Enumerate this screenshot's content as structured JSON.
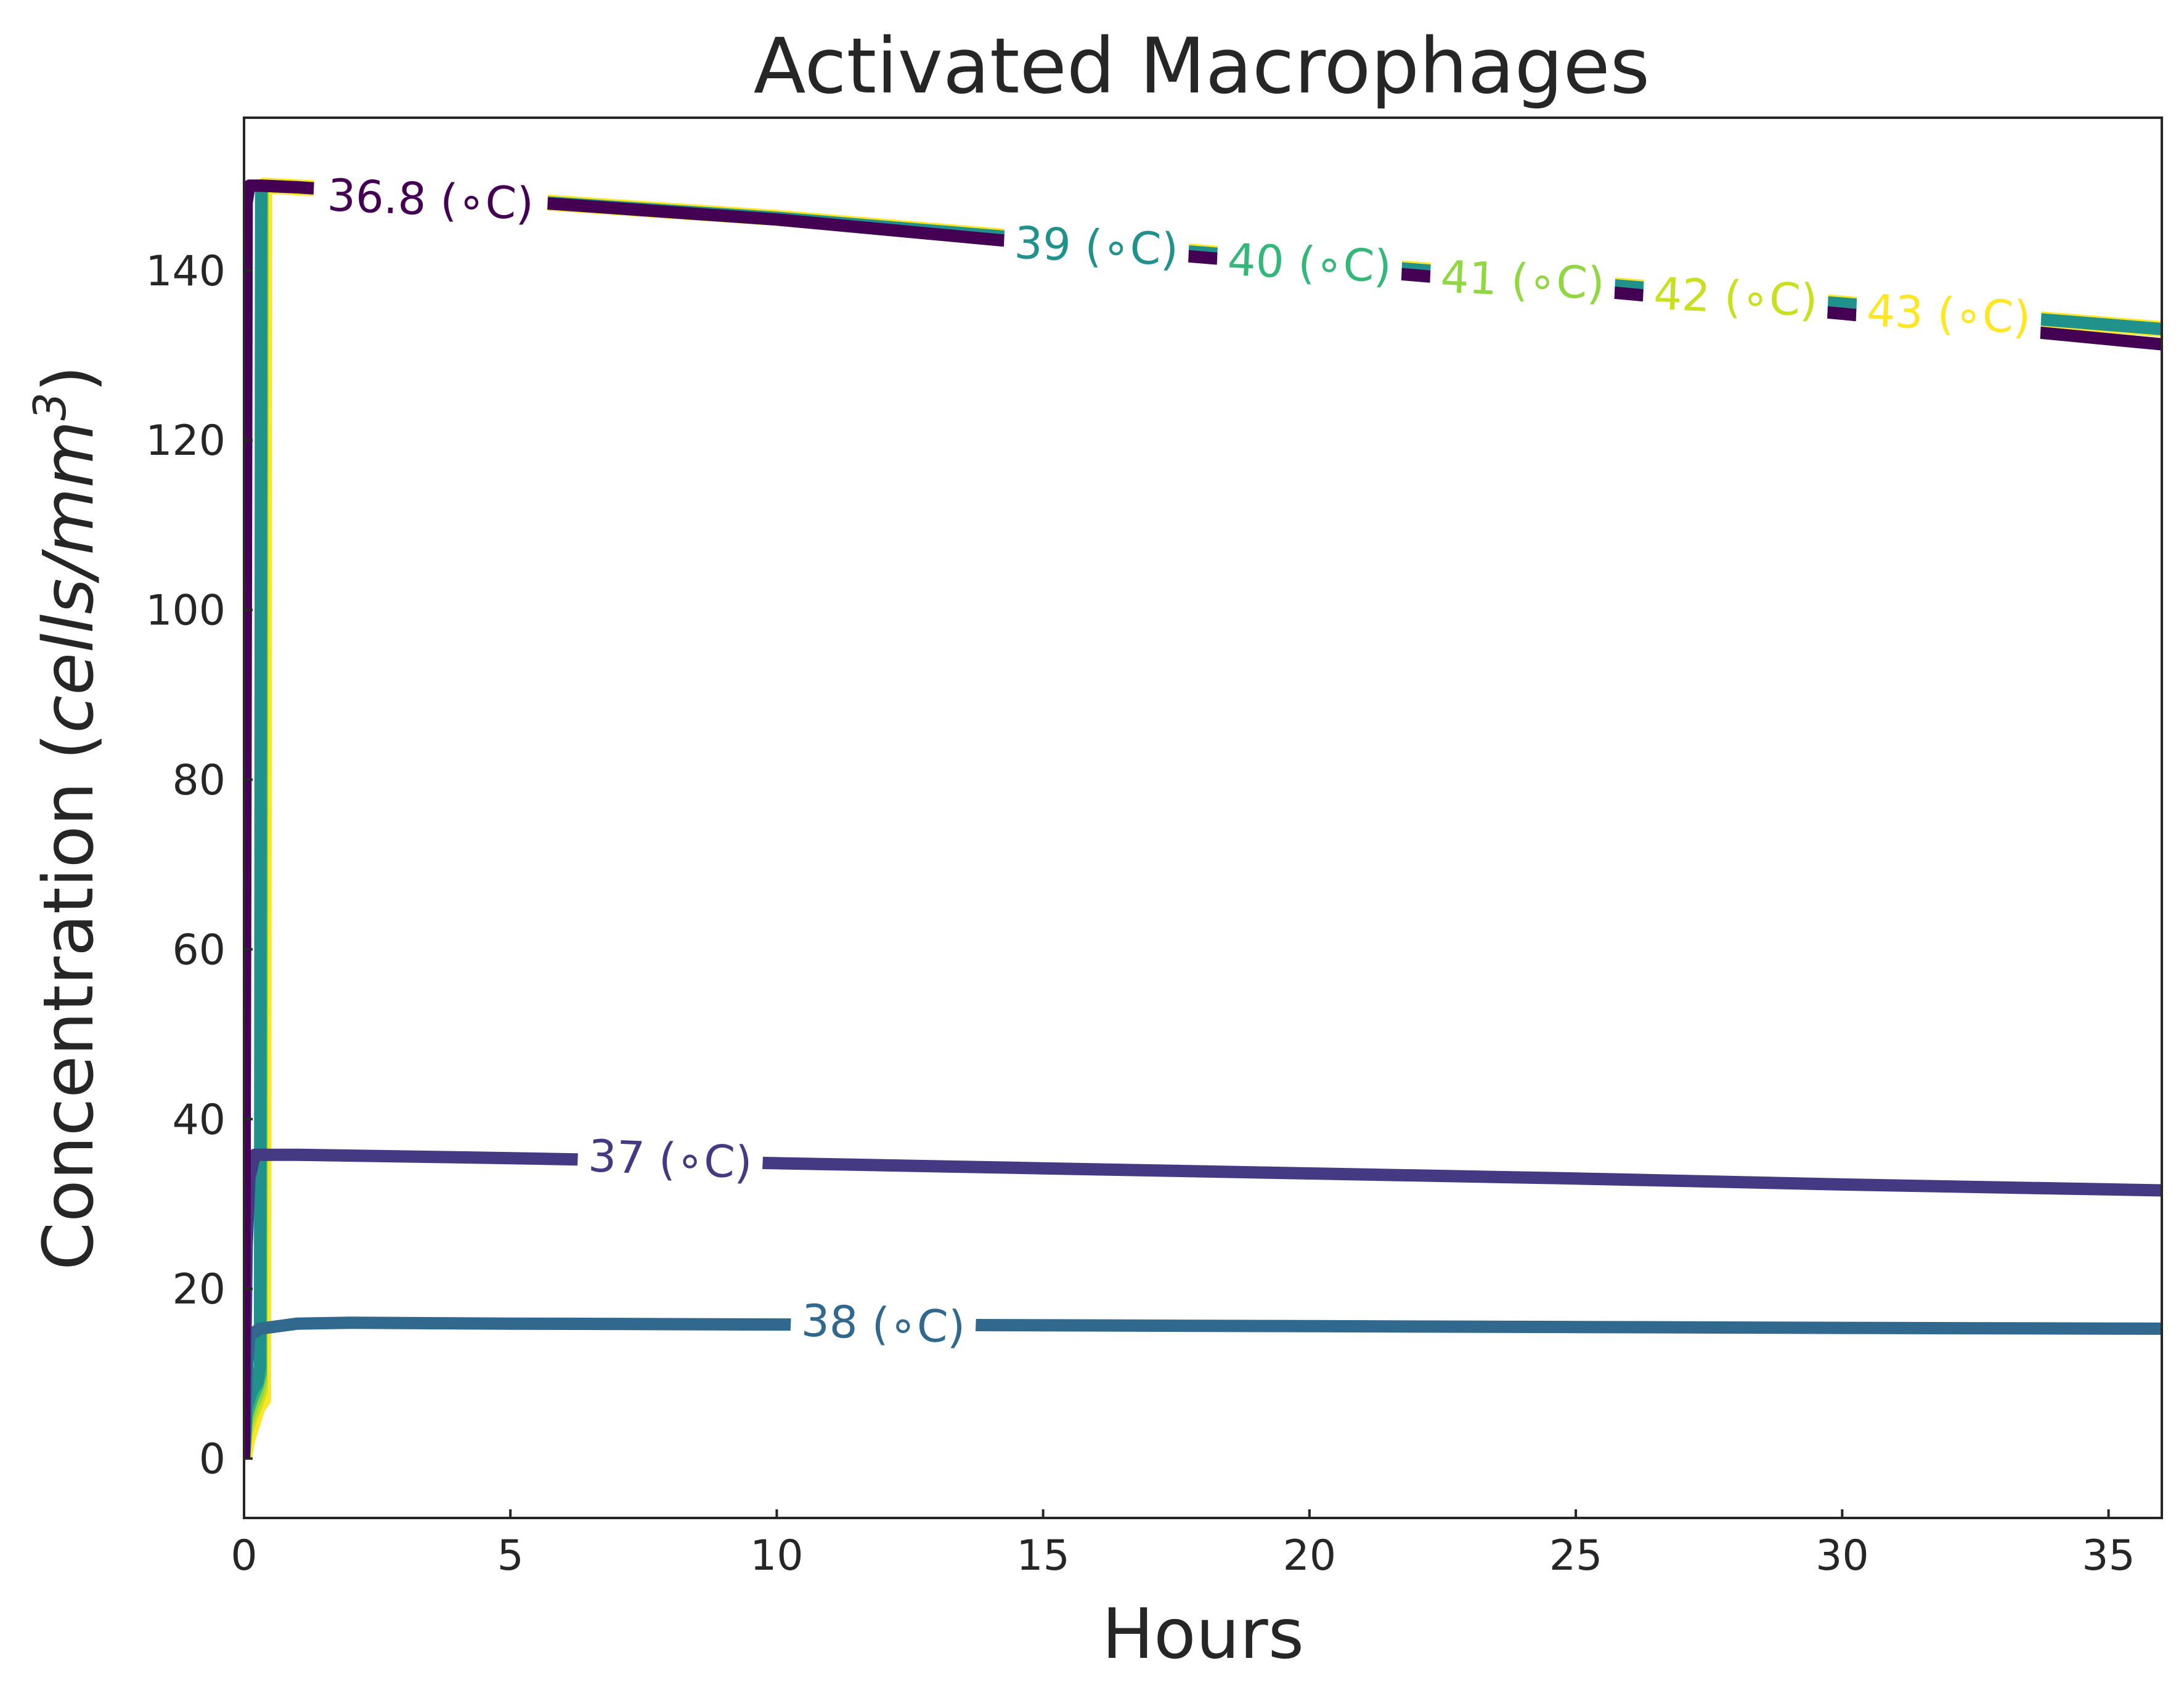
{
  "chart_data": {
    "type": "line",
    "title": "Activated Macrophages",
    "xlabel": "Hours",
    "ylabel_prefix": "Concentration (",
    "ylabel_italic": "cells/mm",
    "ylabel_sup": "3",
    "ylabel_suffix": ")",
    "xlim": [
      0,
      36
    ],
    "ylim": [
      -7,
      158
    ],
    "xticks": [
      0,
      5,
      10,
      15,
      20,
      25,
      30,
      35
    ],
    "yticks": [
      0,
      20,
      40,
      60,
      80,
      100,
      120,
      140
    ],
    "grid": false,
    "legend": "none (inline line labels)",
    "series": [
      {
        "name": "36.8 (∘C)",
        "color": "#440154",
        "points": [
          [
            0,
            0
          ],
          [
            0.05,
            148
          ],
          [
            0.1,
            150
          ],
          [
            0.3,
            150
          ],
          [
            1,
            149.8
          ],
          [
            5,
            148.2
          ],
          [
            10,
            146
          ],
          [
            15,
            143.1
          ],
          [
            20,
            140.5
          ],
          [
            25,
            137.8
          ],
          [
            30,
            134.9
          ],
          [
            36,
            131.3
          ]
        ],
        "label": {
          "text": "36.8 (∘C)",
          "x": 3.5,
          "y": 148.3
        }
      },
      {
        "name": "37 (∘C)",
        "color": "#443983",
        "points": [
          [
            0,
            0
          ],
          [
            0.05,
            25
          ],
          [
            0.1,
            33
          ],
          [
            0.2,
            35.8
          ],
          [
            1,
            35.8
          ],
          [
            5,
            35.4
          ],
          [
            10,
            34.8
          ],
          [
            15,
            34.2
          ],
          [
            20,
            33.6
          ],
          [
            25,
            33
          ],
          [
            30,
            32.3
          ],
          [
            36,
            31.6
          ]
        ],
        "label": {
          "text": "37 (∘C)",
          "x": 8,
          "y": 35.2
        }
      },
      {
        "name": "38 (∘C)",
        "color": "#31688e",
        "points": [
          [
            0,
            0
          ],
          [
            0.05,
            10
          ],
          [
            0.1,
            14.5
          ],
          [
            0.3,
            15.3
          ],
          [
            1,
            15.9
          ],
          [
            2,
            16.0
          ],
          [
            5,
            15.9
          ],
          [
            10,
            15.8
          ],
          [
            15,
            15.7
          ],
          [
            20,
            15.6
          ],
          [
            25,
            15.5
          ],
          [
            30,
            15.4
          ],
          [
            36,
            15.3
          ]
        ],
        "label": {
          "text": "38 (∘C)",
          "x": 12,
          "y": 15.8
        }
      },
      {
        "name": "39 (∘C)",
        "color": "#21918c",
        "points": [
          [
            0,
            0
          ],
          [
            0.05,
            6
          ],
          [
            0.15,
            8
          ],
          [
            0.25,
            9
          ],
          [
            0.3,
            11
          ],
          [
            0.32,
            150
          ],
          [
            1,
            149.8
          ],
          [
            5,
            148.3
          ],
          [
            10,
            146.2
          ],
          [
            15,
            143.6
          ],
          [
            20,
            141.1
          ],
          [
            25,
            138.6
          ],
          [
            30,
            136.1
          ],
          [
            36,
            133.1
          ]
        ],
        "label": {
          "text": "39 (∘C)",
          "x": 16,
          "y": 142.8
        }
      },
      {
        "name": "40 (∘C)",
        "color": "#35b779",
        "points": [
          [
            0,
            0
          ],
          [
            0.05,
            5
          ],
          [
            0.15,
            7
          ],
          [
            0.25,
            8.5
          ],
          [
            0.31,
            10
          ],
          [
            0.33,
            150
          ],
          [
            1,
            149.8
          ],
          [
            5,
            148.3
          ],
          [
            10,
            146.2
          ],
          [
            15,
            143.6
          ],
          [
            20,
            141.1
          ],
          [
            25,
            138.6
          ],
          [
            30,
            136.1
          ],
          [
            36,
            133.1
          ]
        ],
        "label": {
          "text": "40 (∘C)",
          "x": 20,
          "y": 140.8
        }
      },
      {
        "name": "41 (∘C)",
        "color": "#90d743",
        "points": [
          [
            0,
            0
          ],
          [
            0.05,
            4
          ],
          [
            0.15,
            6
          ],
          [
            0.25,
            7.5
          ],
          [
            0.32,
            9
          ],
          [
            0.34,
            150
          ],
          [
            1,
            149.8
          ],
          [
            5,
            148.3
          ],
          [
            10,
            146.2
          ],
          [
            15,
            143.6
          ],
          [
            20,
            141.1
          ],
          [
            25,
            138.6
          ],
          [
            30,
            136.1
          ],
          [
            36,
            133.1
          ]
        ],
        "label": {
          "text": "41 (∘C)",
          "x": 24,
          "y": 138.8
        }
      },
      {
        "name": "42 (∘C)",
        "color": "#c8e020",
        "points": [
          [
            0,
            0
          ],
          [
            0.05,
            3
          ],
          [
            0.15,
            5
          ],
          [
            0.25,
            6.5
          ],
          [
            0.33,
            8
          ],
          [
            0.35,
            150
          ],
          [
            1,
            149.8
          ],
          [
            5,
            148.3
          ],
          [
            10,
            146.2
          ],
          [
            15,
            143.6
          ],
          [
            20,
            141.1
          ],
          [
            25,
            138.6
          ],
          [
            30,
            136.1
          ],
          [
            36,
            133.1
          ]
        ],
        "label": {
          "text": "42 (∘C)",
          "x": 28,
          "y": 136.8
        }
      },
      {
        "name": "43 (∘C)",
        "color": "#fde725",
        "points": [
          [
            0,
            0
          ],
          [
            0.05,
            2
          ],
          [
            0.15,
            4
          ],
          [
            0.25,
            6
          ],
          [
            0.36,
            7
          ],
          [
            0.38,
            150
          ],
          [
            1,
            149.8
          ],
          [
            5,
            148.3
          ],
          [
            10,
            146.2
          ],
          [
            15,
            143.6
          ],
          [
            20,
            141.1
          ],
          [
            25,
            138.6
          ],
          [
            30,
            136.1
          ],
          [
            36,
            133.1
          ]
        ],
        "label": {
          "text": "43 (∘C)",
          "x": 32,
          "y": 134.8
        }
      }
    ]
  }
}
